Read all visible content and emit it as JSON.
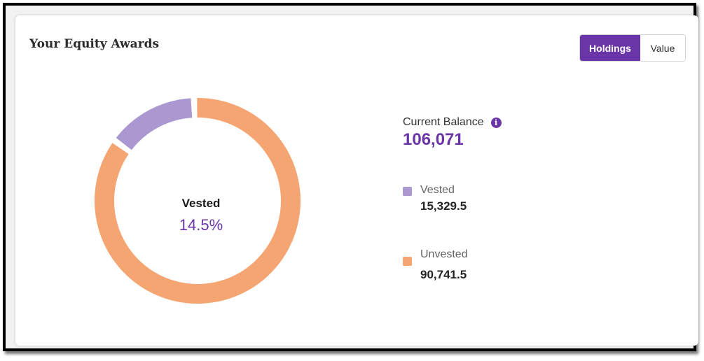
{
  "card": {
    "title": "Your Equity Awards",
    "toggle": {
      "options": [
        "Holdings",
        "Value"
      ],
      "selected": "Holdings"
    }
  },
  "colors": {
    "accent": "#6a35a6",
    "vested": "#ab98d0",
    "unvested": "#f4a572"
  },
  "balance": {
    "label": "Current Balance",
    "info_icon": "info-icon",
    "value": "106,071"
  },
  "center": {
    "label": "Vested",
    "percent": "14.5%"
  },
  "legend": [
    {
      "label": "Vested",
      "value": "15,329.5"
    },
    {
      "label": "Unvested",
      "value": "90,741.5"
    }
  ],
  "chart_data": {
    "type": "pie",
    "style": "donut",
    "categories": [
      "Vested",
      "Unvested"
    ],
    "values": [
      15329.5,
      90741.5
    ],
    "title": "",
    "center_label": "Vested",
    "center_value": "14.5%"
  }
}
